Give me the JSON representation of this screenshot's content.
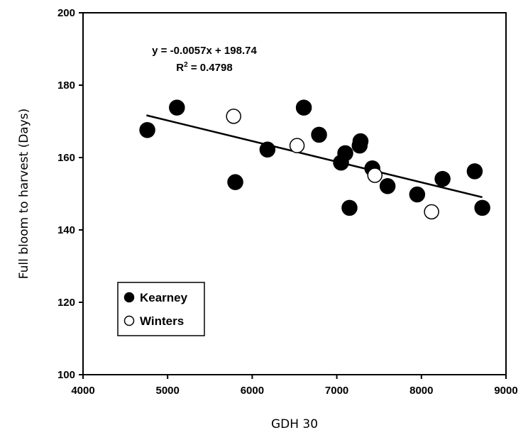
{
  "chart_data": {
    "type": "scatter",
    "xlabel": "GDH 30",
    "ylabel": "Full bloom to harvest (Days)",
    "xlim": [
      4000,
      9000
    ],
    "ylim": [
      100,
      200
    ],
    "xticks": [
      4000,
      5000,
      6000,
      7000,
      8000,
      9000
    ],
    "yticks": [
      100,
      120,
      140,
      160,
      180,
      200
    ],
    "grid": false,
    "legend_position": "bottom-left",
    "series": [
      {
        "name": "Kearney",
        "marker": "filled-circle",
        "color": "#000000",
        "points": [
          {
            "x": 4760,
            "y": 167.6
          },
          {
            "x": 5110,
            "y": 173.8
          },
          {
            "x": 5800,
            "y": 153.2
          },
          {
            "x": 6180,
            "y": 162.2
          },
          {
            "x": 6610,
            "y": 173.8
          },
          {
            "x": 6790,
            "y": 166.3
          },
          {
            "x": 7050,
            "y": 158.6
          },
          {
            "x": 7100,
            "y": 161.2
          },
          {
            "x": 7150,
            "y": 146.1
          },
          {
            "x": 7270,
            "y": 163.3
          },
          {
            "x": 7280,
            "y": 164.5
          },
          {
            "x": 7420,
            "y": 157.0
          },
          {
            "x": 7600,
            "y": 152.1
          },
          {
            "x": 7950,
            "y": 149.8
          },
          {
            "x": 8250,
            "y": 154.1
          },
          {
            "x": 8630,
            "y": 156.2
          },
          {
            "x": 8720,
            "y": 146.1
          }
        ]
      },
      {
        "name": "Winters",
        "marker": "open-circle",
        "color": "#000000",
        "points": [
          {
            "x": 5780,
            "y": 171.4
          },
          {
            "x": 6530,
            "y": 163.3
          },
          {
            "x": 7450,
            "y": 155.1
          },
          {
            "x": 8120,
            "y": 145.0
          }
        ]
      }
    ],
    "trendline": {
      "x_start": 4750,
      "x_end": 8720,
      "slope": -0.0057,
      "intercept": 198.74,
      "equation": "y = -0.0057x + 198.74",
      "r2_label": "R",
      "r2_sup": "2",
      "r2_value": " = 0.4798"
    }
  }
}
